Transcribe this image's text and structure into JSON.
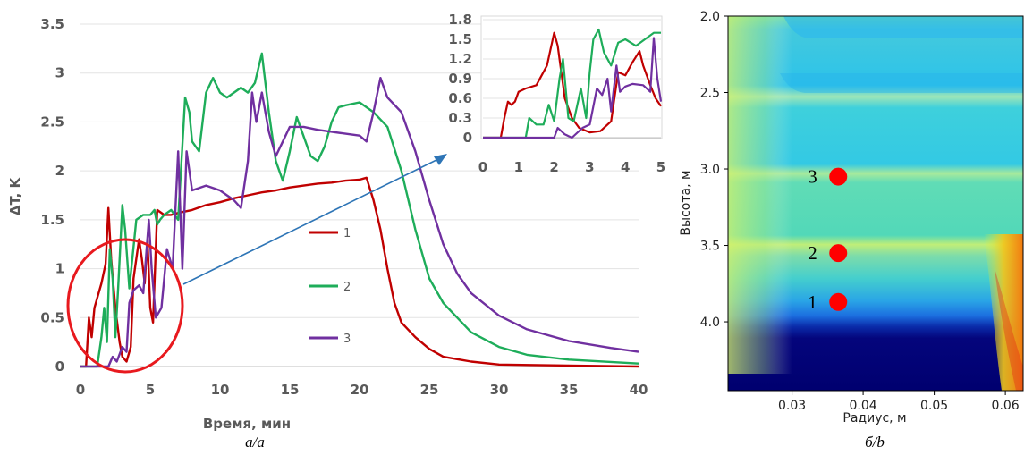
{
  "chart_data": [
    {
      "id": "a",
      "type": "line",
      "xlabel": "Время, мин",
      "ylabel": "ΔT, K",
      "xlim": [
        0,
        40
      ],
      "ylim": [
        0,
        3.5
      ],
      "xticks": [
        "0",
        "5",
        "10",
        "15",
        "20",
        "25",
        "30",
        "35",
        "40"
      ],
      "yticks": [
        "0",
        "0.5",
        "1",
        "1.5",
        "2",
        "2.5",
        "3",
        "3.5"
      ],
      "grid": "horizontal",
      "legend_position": "center",
      "caption": "а/a",
      "series": [
        {
          "name": "1",
          "color": "#c00000",
          "points": [
            [
              0,
              0
            ],
            [
              0.4,
              0
            ],
            [
              0.6,
              0.5
            ],
            [
              0.8,
              0.3
            ],
            [
              1.0,
              0.6
            ],
            [
              1.2,
              0.7
            ],
            [
              1.5,
              0.85
            ],
            [
              1.8,
              1.05
            ],
            [
              2.0,
              1.62
            ],
            [
              2.2,
              1.1
            ],
            [
              2.5,
              0.6
            ],
            [
              2.8,
              0.25
            ],
            [
              3.0,
              0.1
            ],
            [
              3.3,
              0.05
            ],
            [
              3.6,
              0.2
            ],
            [
              3.8,
              0.9
            ],
            [
              4.0,
              1.1
            ],
            [
              4.2,
              1.3
            ],
            [
              4.4,
              1.1
            ],
            [
              4.6,
              0.85
            ],
            [
              4.8,
              1.3
            ],
            [
              5.0,
              0.6
            ],
            [
              5.2,
              0.45
            ],
            [
              5.5,
              1.6
            ],
            [
              6.0,
              1.55
            ],
            [
              6.5,
              1.55
            ],
            [
              7.0,
              1.57
            ],
            [
              8.0,
              1.6
            ],
            [
              9,
              1.65
            ],
            [
              10,
              1.68
            ],
            [
              11,
              1.72
            ],
            [
              12,
              1.75
            ],
            [
              13,
              1.78
            ],
            [
              14,
              1.8
            ],
            [
              15,
              1.83
            ],
            [
              16,
              1.85
            ],
            [
              17,
              1.87
            ],
            [
              18,
              1.88
            ],
            [
              19,
              1.9
            ],
            [
              20,
              1.91
            ],
            [
              20.5,
              1.93
            ],
            [
              21,
              1.7
            ],
            [
              21.5,
              1.4
            ],
            [
              22,
              1.0
            ],
            [
              22.5,
              0.65
            ],
            [
              23,
              0.45
            ],
            [
              24,
              0.3
            ],
            [
              25,
              0.18
            ],
            [
              26,
              0.1
            ],
            [
              28,
              0.05
            ],
            [
              30,
              0.02
            ],
            [
              35,
              0.01
            ],
            [
              40,
              0.0
            ]
          ]
        },
        {
          "name": "2",
          "color": "#1ead5a",
          "points": [
            [
              0,
              0
            ],
            [
              1.2,
              0
            ],
            [
              1.5,
              0.3
            ],
            [
              1.7,
              0.6
            ],
            [
              1.9,
              0.25
            ],
            [
              2.1,
              1.2
            ],
            [
              2.3,
              0.9
            ],
            [
              2.5,
              0.3
            ],
            [
              2.7,
              0.8
            ],
            [
              3.0,
              1.65
            ],
            [
              3.2,
              1.4
            ],
            [
              3.5,
              0.8
            ],
            [
              4.0,
              1.5
            ],
            [
              4.5,
              1.55
            ],
            [
              5.0,
              1.55
            ],
            [
              5.3,
              1.6
            ],
            [
              5.5,
              1.45
            ],
            [
              5.7,
              1.5
            ],
            [
              6.0,
              1.55
            ],
            [
              6.5,
              1.6
            ],
            [
              7.0,
              1.5
            ],
            [
              7.2,
              2.0
            ],
            [
              7.5,
              2.75
            ],
            [
              7.8,
              2.6
            ],
            [
              8.0,
              2.3
            ],
            [
              8.5,
              2.2
            ],
            [
              9,
              2.8
            ],
            [
              9.5,
              2.95
            ],
            [
              10,
              2.8
            ],
            [
              10.5,
              2.75
            ],
            [
              11,
              2.8
            ],
            [
              11.5,
              2.85
            ],
            [
              12,
              2.8
            ],
            [
              12.5,
              2.9
            ],
            [
              13,
              3.2
            ],
            [
              13.5,
              2.6
            ],
            [
              14,
              2.1
            ],
            [
              14.5,
              1.9
            ],
            [
              15,
              2.2
            ],
            [
              15.5,
              2.55
            ],
            [
              16,
              2.35
            ],
            [
              16.5,
              2.15
            ],
            [
              17,
              2.1
            ],
            [
              17.5,
              2.25
            ],
            [
              18,
              2.5
            ],
            [
              18.5,
              2.65
            ],
            [
              19,
              2.67
            ],
            [
              20,
              2.7
            ],
            [
              21,
              2.6
            ],
            [
              22,
              2.45
            ],
            [
              23,
              2.0
            ],
            [
              24,
              1.4
            ],
            [
              25,
              0.9
            ],
            [
              26,
              0.65
            ],
            [
              27,
              0.5
            ],
            [
              28,
              0.35
            ],
            [
              30,
              0.2
            ],
            [
              32,
              0.12
            ],
            [
              35,
              0.07
            ],
            [
              40,
              0.03
            ]
          ]
        },
        {
          "name": "3",
          "color": "#7030a0",
          "points": [
            [
              0,
              0
            ],
            [
              2.0,
              0
            ],
            [
              2.3,
              0.1
            ],
            [
              2.6,
              0.05
            ],
            [
              3.0,
              0.2
            ],
            [
              3.3,
              0.15
            ],
            [
              3.5,
              0.65
            ],
            [
              3.8,
              0.78
            ],
            [
              4.2,
              0.83
            ],
            [
              4.5,
              0.75
            ],
            [
              4.9,
              1.5
            ],
            [
              5.1,
              1.0
            ],
            [
              5.4,
              0.5
            ],
            [
              5.8,
              0.6
            ],
            [
              6.2,
              1.2
            ],
            [
              6.6,
              1.0
            ],
            [
              7.0,
              2.2
            ],
            [
              7.3,
              1.0
            ],
            [
              7.6,
              2.2
            ],
            [
              8,
              1.8
            ],
            [
              9,
              1.85
            ],
            [
              10,
              1.8
            ],
            [
              11,
              1.7
            ],
            [
              11.5,
              1.62
            ],
            [
              12,
              2.1
            ],
            [
              12.3,
              2.8
            ],
            [
              12.6,
              2.5
            ],
            [
              13,
              2.8
            ],
            [
              13.5,
              2.4
            ],
            [
              14,
              2.15
            ],
            [
              14.5,
              2.3
            ],
            [
              15,
              2.45
            ],
            [
              16,
              2.45
            ],
            [
              17,
              2.42
            ],
            [
              18,
              2.4
            ],
            [
              19,
              2.38
            ],
            [
              20,
              2.36
            ],
            [
              20.5,
              2.3
            ],
            [
              21,
              2.6
            ],
            [
              21.5,
              2.95
            ],
            [
              22,
              2.75
            ],
            [
              23,
              2.6
            ],
            [
              24,
              2.2
            ],
            [
              25,
              1.7
            ],
            [
              26,
              1.25
            ],
            [
              27,
              0.95
            ],
            [
              28,
              0.75
            ],
            [
              30,
              0.52
            ],
            [
              32,
              0.38
            ],
            [
              35,
              0.26
            ],
            [
              38,
              0.19
            ],
            [
              40,
              0.15
            ]
          ]
        }
      ]
    },
    {
      "id": "a-inset",
      "type": "line",
      "xlim": [
        0,
        5
      ],
      "ylim": [
        0,
        1.8
      ],
      "xticks": [
        "0",
        "1",
        "2",
        "3",
        "4",
        "5"
      ],
      "yticks": [
        "0",
        "0.3",
        "0.6",
        "0.9",
        "1.2",
        "1.5",
        "1.8"
      ],
      "series": [
        {
          "name": "1",
          "color": "#c00000",
          "points": [
            [
              0,
              0
            ],
            [
              0.5,
              0
            ],
            [
              0.6,
              0.3
            ],
            [
              0.7,
              0.55
            ],
            [
              0.8,
              0.5
            ],
            [
              0.9,
              0.55
            ],
            [
              1.0,
              0.7
            ],
            [
              1.2,
              0.75
            ],
            [
              1.5,
              0.8
            ],
            [
              1.8,
              1.1
            ],
            [
              2.0,
              1.6
            ],
            [
              2.1,
              1.4
            ],
            [
              2.3,
              0.6
            ],
            [
              2.5,
              0.3
            ],
            [
              2.7,
              0.15
            ],
            [
              3.0,
              0.08
            ],
            [
              3.3,
              0.1
            ],
            [
              3.6,
              0.25
            ],
            [
              3.8,
              1.0
            ],
            [
              4.0,
              0.95
            ],
            [
              4.2,
              1.15
            ],
            [
              4.4,
              1.32
            ],
            [
              4.5,
              1.1
            ],
            [
              4.7,
              0.8
            ],
            [
              4.85,
              0.6
            ],
            [
              5.0,
              0.48
            ]
          ]
        },
        {
          "name": "2",
          "color": "#1ead5a",
          "points": [
            [
              0,
              0
            ],
            [
              1.2,
              0
            ],
            [
              1.3,
              0.3
            ],
            [
              1.5,
              0.2
            ],
            [
              1.7,
              0.2
            ],
            [
              1.85,
              0.5
            ],
            [
              2.0,
              0.25
            ],
            [
              2.15,
              0.9
            ],
            [
              2.25,
              1.2
            ],
            [
              2.4,
              0.3
            ],
            [
              2.55,
              0.25
            ],
            [
              2.75,
              0.75
            ],
            [
              2.9,
              0.3
            ],
            [
              3.0,
              1.0
            ],
            [
              3.1,
              1.5
            ],
            [
              3.25,
              1.65
            ],
            [
              3.4,
              1.3
            ],
            [
              3.6,
              1.1
            ],
            [
              3.8,
              1.45
            ],
            [
              4.0,
              1.5
            ],
            [
              4.3,
              1.4
            ],
            [
              4.6,
              1.52
            ],
            [
              4.8,
              1.6
            ],
            [
              5.0,
              1.6
            ]
          ]
        },
        {
          "name": "3",
          "color": "#7030a0",
          "points": [
            [
              0,
              0
            ],
            [
              2.0,
              0
            ],
            [
              2.1,
              0.15
            ],
            [
              2.3,
              0.05
            ],
            [
              2.5,
              0.0
            ],
            [
              2.8,
              0.15
            ],
            [
              3.0,
              0.2
            ],
            [
              3.2,
              0.75
            ],
            [
              3.35,
              0.65
            ],
            [
              3.5,
              0.9
            ],
            [
              3.6,
              0.4
            ],
            [
              3.75,
              1.1
            ],
            [
              3.85,
              0.7
            ],
            [
              4.0,
              0.78
            ],
            [
              4.2,
              0.82
            ],
            [
              4.5,
              0.8
            ],
            [
              4.7,
              0.7
            ],
            [
              4.8,
              1.52
            ],
            [
              4.9,
              0.9
            ],
            [
              5.0,
              0.55
            ]
          ]
        }
      ]
    }
  ],
  "legend": [
    {
      "label": "1",
      "color": "#c00000"
    },
    {
      "label": "2",
      "color": "#1ead5a"
    },
    {
      "label": "3",
      "color": "#7030a0"
    }
  ],
  "heatmap": {
    "type": "heatmap",
    "xlabel": "Радиус, м",
    "ylabel": "Высота, м",
    "xlim": [
      0.021,
      0.0625
    ],
    "ylim": [
      2.0,
      4.45
    ],
    "y_inverted": true,
    "colormap": "jet",
    "xticks": [
      "0.03",
      "0.04",
      "0.05",
      "0.06"
    ],
    "xtick_values": [
      0.03,
      0.04,
      0.05,
      0.06
    ],
    "yticks": [
      "2.0",
      "2.5",
      "3.0",
      "3.5",
      "4.0"
    ],
    "ytick_values": [
      2.0,
      2.5,
      3.0,
      3.5,
      4.0
    ],
    "caption": "б/b",
    "points": [
      {
        "label": "3",
        "x": 0.0365,
        "y": 3.05,
        "color": "#ff0000"
      },
      {
        "label": "2",
        "x": 0.0365,
        "y": 3.55,
        "color": "#ff0000"
      },
      {
        "label": "1",
        "x": 0.0365,
        "y": 3.87,
        "color": "#ff0000"
      }
    ]
  }
}
